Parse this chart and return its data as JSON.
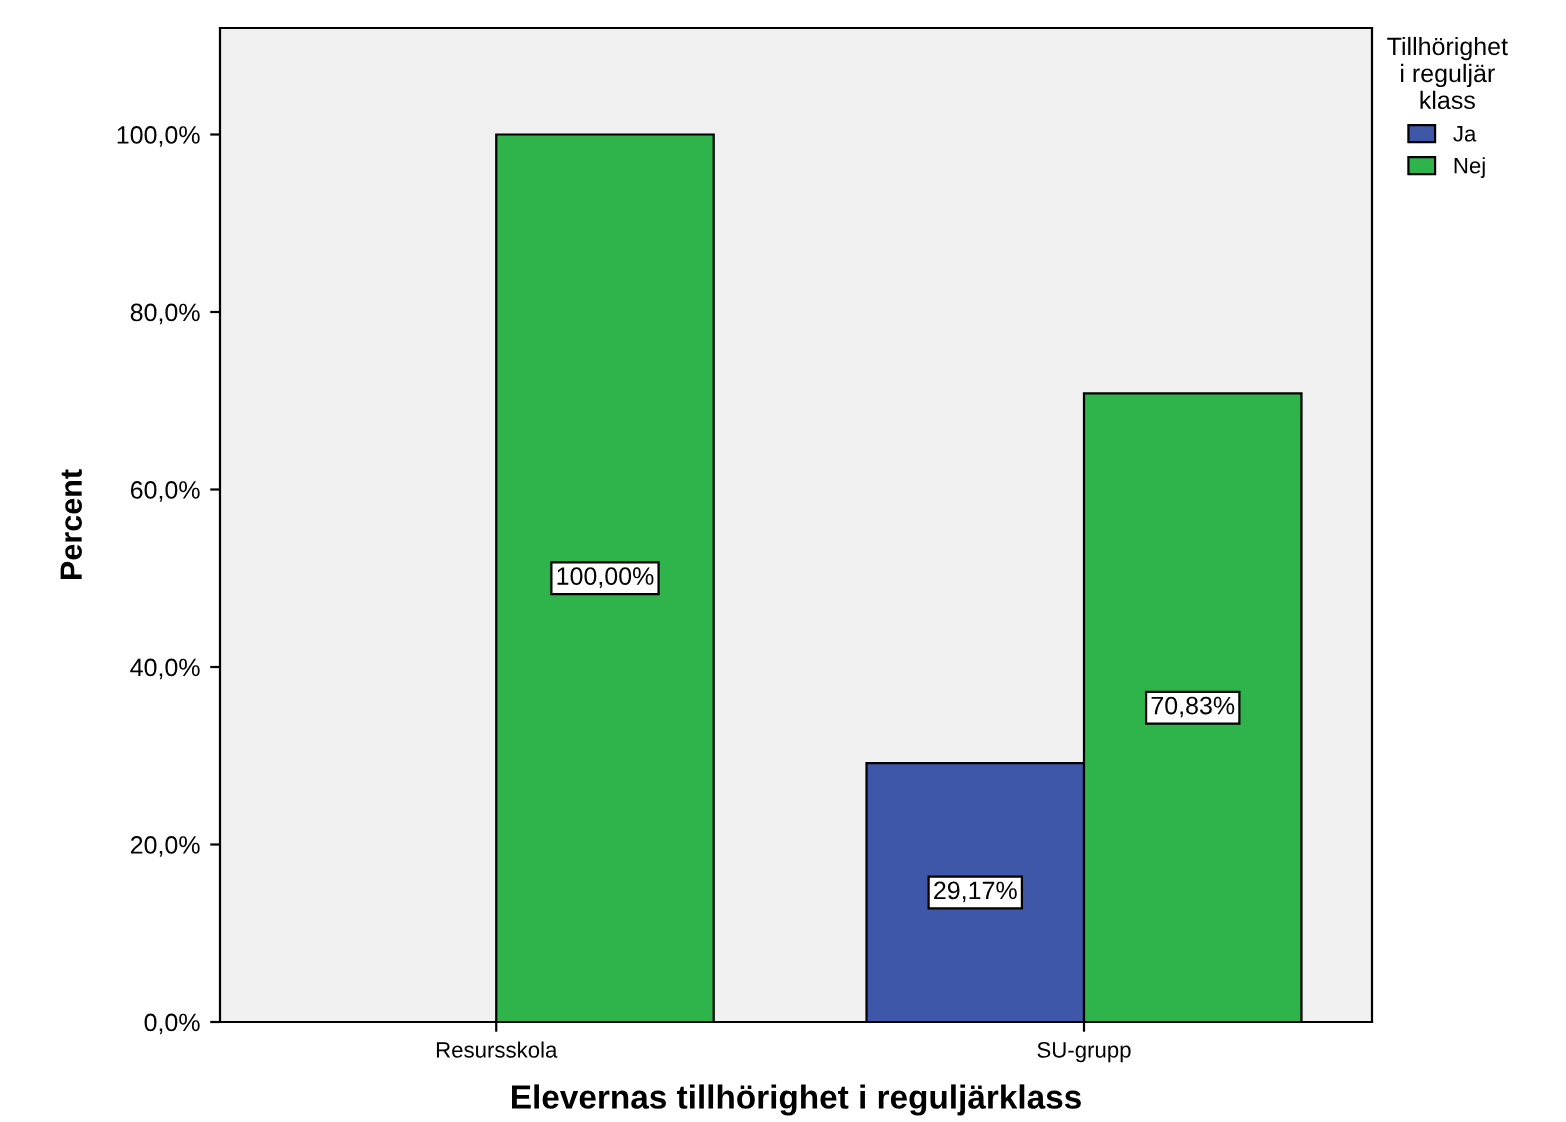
{
  "chart_data": {
    "type": "bar",
    "xlabel": "Elevernas tillhörighet i reguljärklass",
    "ylabel": "Percent",
    "legend_title": "Tillhörighet\ni reguljär\nklass",
    "categories": [
      "Resursskola",
      "SU-grupp"
    ],
    "series": [
      {
        "name": "Ja",
        "color": "#3f57a8",
        "values": [
          null,
          29.17
        ],
        "value_labels": [
          null,
          "29,17%"
        ]
      },
      {
        "name": "Nej",
        "color": "#2eb44a",
        "values": [
          100,
          70.83
        ],
        "value_labels": [
          "100,00%",
          "70,83%"
        ]
      }
    ],
    "ylim": [
      0,
      112
    ],
    "yticks": [
      {
        "value": 0,
        "label": "0,0%"
      },
      {
        "value": 20,
        "label": "20,0%"
      },
      {
        "value": 40,
        "label": "40,0%"
      },
      {
        "value": 60,
        "label": "60,0%"
      },
      {
        "value": 80,
        "label": "80,0%"
      },
      {
        "value": 100,
        "label": "100,0%"
      }
    ],
    "legend": "top right",
    "grid": false
  }
}
